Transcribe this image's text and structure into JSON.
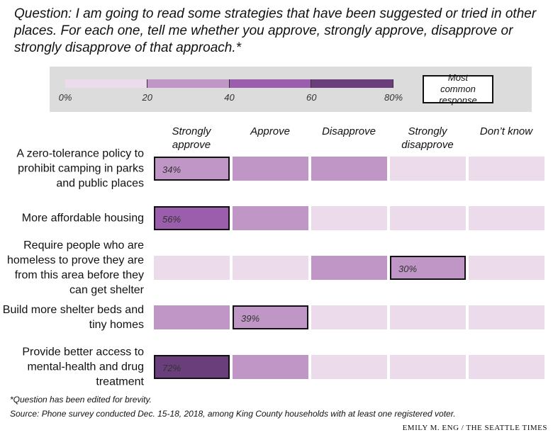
{
  "chart_data": {
    "type": "heatmap",
    "title": "Question: I am going to read some strategies that have been suggested or tried in other places. For each one, tell me whether you approve, strongly approve, disapprove or strongly disapprove of that approach.*",
    "legend": {
      "bins": [
        {
          "value": 0,
          "label": "0%"
        },
        20,
        40,
        60,
        {
          "value": 80,
          "label": "80%"
        }
      ],
      "colors": [
        "#ebdbeb",
        "#bf96c6",
        "#9a5ead",
        "#6a3e7a"
      ],
      "highlight_label": "Most common response"
    },
    "categories": [
      "Strongly approve",
      "Approve",
      "Disapprove",
      "Strongly disapprove",
      "Don’t know"
    ],
    "rows": [
      {
        "name": "A zero-tolerance policy to prohibit camping in parks and public places",
        "values": [
          34,
          30,
          24,
          8,
          4
        ],
        "value_labels": [
          "34%",
          null,
          null,
          null,
          null
        ]
      },
      {
        "name": "More affordable housing",
        "values": [
          56,
          32,
          6,
          3,
          3
        ],
        "value_labels": [
          "56%",
          null,
          null,
          null,
          null
        ]
      },
      {
        "name": "Require people who are homeless to prove they are from this area before they can get shelter",
        "values": [
          14,
          16,
          29,
          30,
          11
        ],
        "value_labels": [
          null,
          null,
          null,
          "30%",
          null
        ]
      },
      {
        "name": "Build more shelter beds and tiny homes",
        "values": [
          33,
          39,
          12,
          10,
          6
        ],
        "value_labels": [
          null,
          "39%",
          null,
          null,
          null
        ]
      },
      {
        "name": "Provide better access to mental-health and drug treatment",
        "values": [
          72,
          20,
          4,
          2,
          2
        ],
        "value_labels": [
          "72%",
          null,
          null,
          null,
          null
        ]
      }
    ],
    "footnote": "*Question has been edited for brevity.",
    "source": "Source: Phone survey conducted Dec. 15-18, 2018, among King County households with at least one registered voter.",
    "credit": "EMILY M. ENG / THE SEATTLE TIMES"
  }
}
